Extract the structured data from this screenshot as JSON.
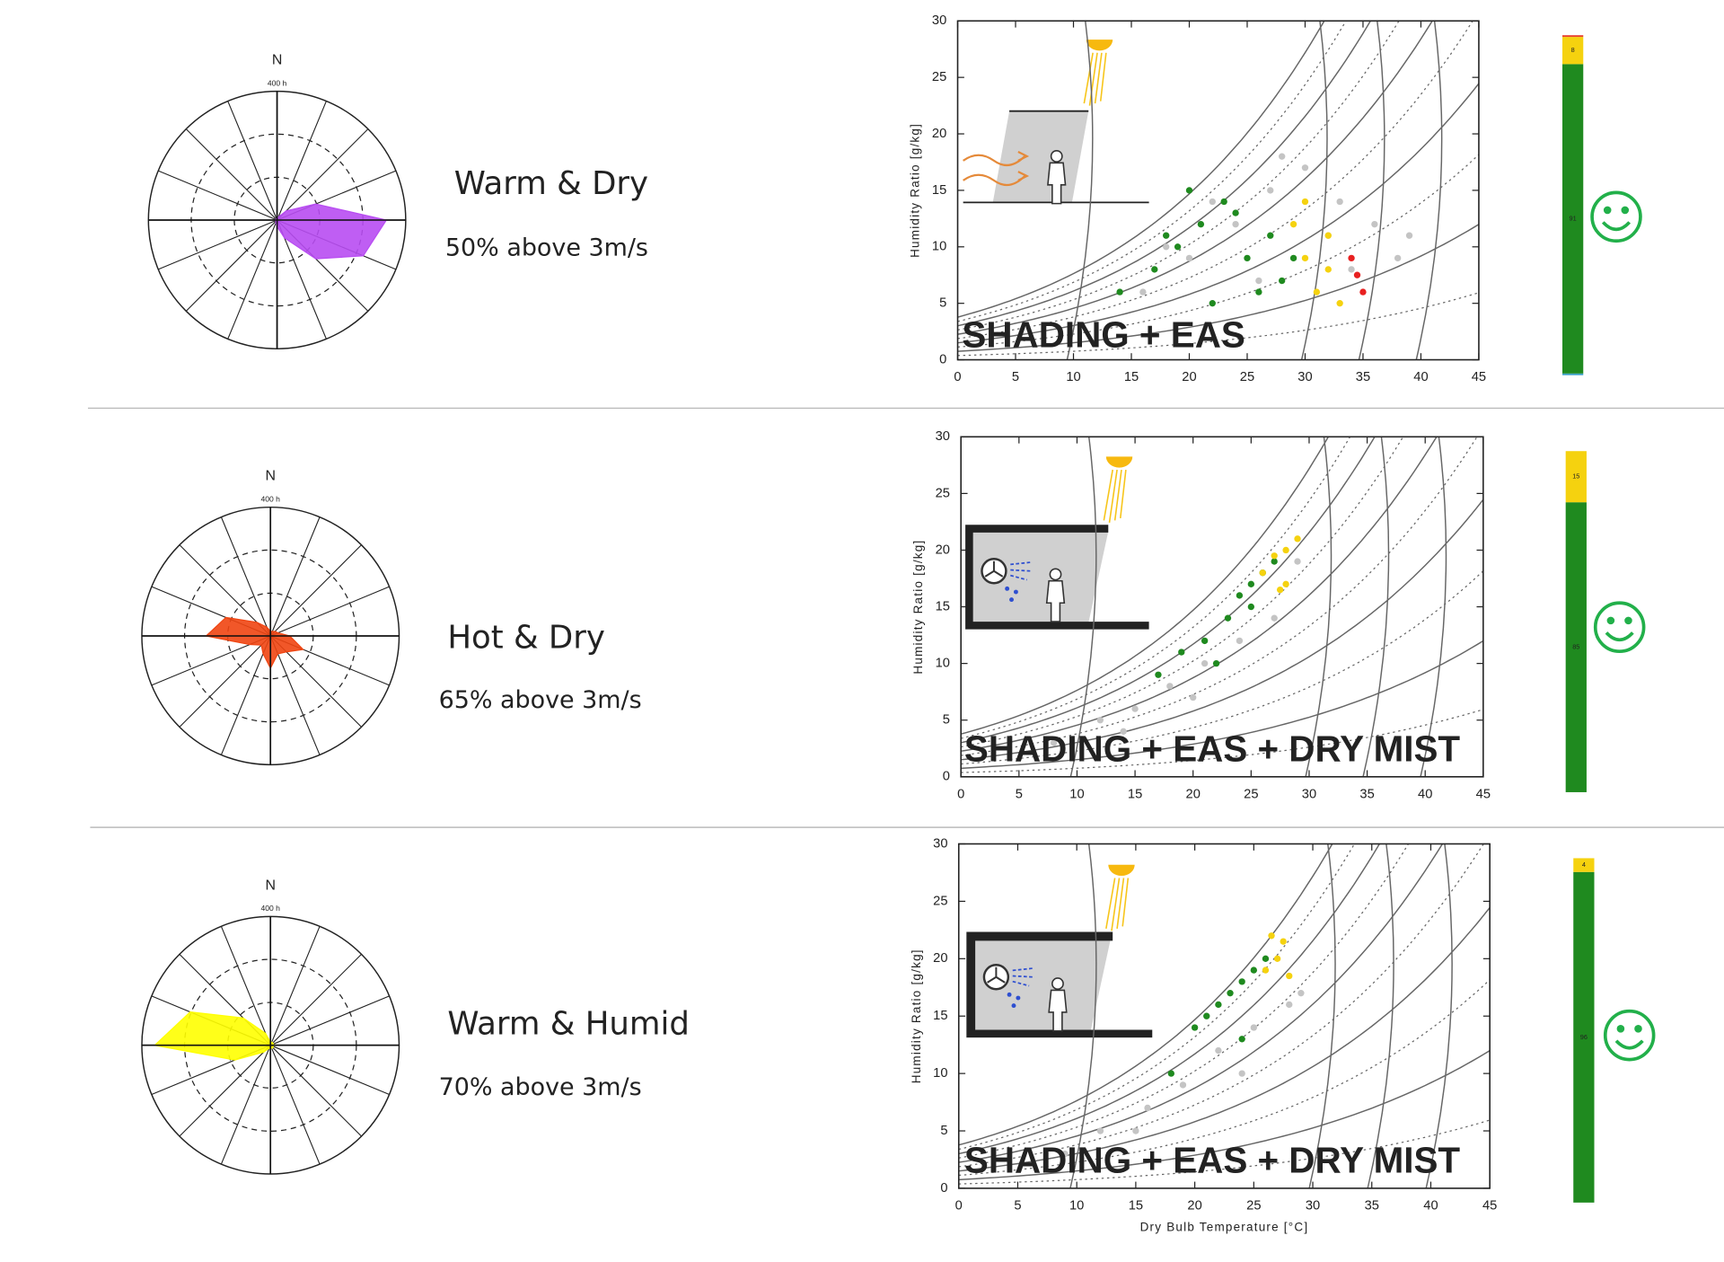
{
  "chart_data": [
    {
      "type": "windrose",
      "north_label": "N",
      "rlim": [
        0,
        400
      ],
      "rticks": [
        {
          "value": 400,
          "label": "400 h"
        }
      ],
      "rgrid": [
        133,
        267
      ],
      "color": "#b84cf2",
      "values": [
        5,
        10,
        40,
        130,
        340,
        290,
        170,
        60,
        20,
        10,
        5,
        5,
        5,
        5,
        5,
        5
      ],
      "annotations": [
        "Warm & Dry",
        "50% above 3m/s"
      ]
    },
    {
      "type": "scatter",
      "annotation": "SHADING + EAS",
      "ylabel": "Humidity Ratio  [g/kg]",
      "xlim": [
        0,
        45
      ],
      "ylim": [
        0,
        30
      ],
      "xticks": [
        0,
        5,
        10,
        15,
        20,
        25,
        30,
        35,
        40,
        45
      ],
      "yticks": [
        0,
        5,
        10,
        15,
        20,
        25,
        30
      ],
      "series": [
        {
          "color": "#c4c4c4",
          "x": [
            16,
            20,
            24,
            27,
            30,
            33,
            36,
            38,
            22,
            28,
            34,
            18,
            26,
            32,
            39
          ],
          "y": [
            6,
            9,
            12,
            15,
            17,
            14,
            12,
            9,
            14,
            18,
            8,
            10,
            7,
            11,
            11
          ]
        },
        {
          "color": "#1f8a1f",
          "x": [
            14,
            17,
            19,
            21,
            23,
            25,
            27,
            28,
            20,
            24,
            26,
            22,
            18,
            29
          ],
          "y": [
            6,
            8,
            10,
            12,
            14,
            9,
            11,
            7,
            15,
            13,
            6,
            5,
            11,
            9
          ]
        },
        {
          "color": "#f5d20f",
          "x": [
            29,
            30,
            31,
            32,
            33,
            30,
            32
          ],
          "y": [
            12,
            9,
            6,
            11,
            5,
            14,
            8
          ]
        },
        {
          "color": "#e82020",
          "x": [
            34,
            35,
            34.5
          ],
          "y": [
            9,
            6,
            7.5
          ]
        }
      ]
    },
    {
      "type": "stacked_bar",
      "ylim": [
        0,
        100
      ],
      "series": [
        {
          "color": "#3aa0c8",
          "values": [
            0.5
          ],
          "labels": false
        },
        {
          "color": "#1f8a1f",
          "values": [
            91
          ],
          "labels": true
        },
        {
          "color": "#f5d20f",
          "values": [
            8
          ],
          "labels": true
        },
        {
          "color": "#e84030",
          "values": [
            0.5
          ],
          "labels": false
        }
      ]
    },
    {
      "type": "windrose",
      "north_label": "N",
      "rlim": [
        0,
        400
      ],
      "rticks": [
        {
          "value": 400,
          "label": "400 h"
        }
      ],
      "rgrid": [
        133,
        267
      ],
      "color": "#f04512",
      "values": [
        15,
        15,
        20,
        25,
        60,
        110,
        70,
        60,
        100,
        60,
        40,
        70,
        200,
        150,
        60,
        30
      ],
      "annotations": [
        "Hot & Dry",
        "65% above 3m/s"
      ]
    },
    {
      "type": "scatter",
      "annotation": "SHADING + EAS + DRY MIST",
      "ylabel": "Humidity Ratio  [g/kg]",
      "xlim": [
        0,
        45
      ],
      "ylim": [
        0,
        30
      ],
      "xticks": [
        0,
        5,
        10,
        15,
        20,
        25,
        30,
        35,
        40,
        45
      ],
      "yticks": [
        0,
        5,
        10,
        15,
        20,
        25,
        30
      ],
      "series": [
        {
          "color": "#c4c4c4",
          "x": [
            8,
            12,
            15,
            18,
            21,
            24,
            27,
            29,
            14,
            20
          ],
          "y": [
            3,
            5,
            6,
            8,
            10,
            12,
            14,
            19,
            4,
            7
          ]
        },
        {
          "color": "#1f8a1f",
          "x": [
            17,
            19,
            21,
            23,
            24,
            25,
            26,
            27,
            22,
            25
          ],
          "y": [
            9,
            11,
            12,
            14,
            16,
            17,
            18,
            19,
            10,
            15
          ]
        },
        {
          "color": "#f5d20f",
          "x": [
            26,
            27,
            28,
            29,
            28,
            27.5
          ],
          "y": [
            18,
            19.5,
            20,
            21,
            17,
            16.5
          ]
        }
      ]
    },
    {
      "type": "stacked_bar",
      "ylim": [
        0,
        100
      ],
      "series": [
        {
          "color": "#1f8a1f",
          "values": [
            85
          ],
          "labels": true
        },
        {
          "color": "#f5d20f",
          "values": [
            15
          ],
          "labels": true
        }
      ]
    },
    {
      "type": "windrose",
      "north_label": "N",
      "rlim": [
        0,
        400
      ],
      "rticks": [
        {
          "value": 400,
          "label": "400 h"
        }
      ],
      "rgrid": [
        133,
        267
      ],
      "color": "#ffff00",
      "values": [
        10,
        10,
        10,
        10,
        10,
        10,
        10,
        10,
        10,
        10,
        30,
        120,
        360,
        270,
        120,
        40
      ],
      "annotations": [
        "Warm & Humid",
        "70% above 3m/s"
      ]
    },
    {
      "type": "scatter",
      "annotation": "SHADING + EAS + DRY MIST",
      "ylabel": "Humidity Ratio  [g/kg]",
      "xlabel": "Dry Bulb Temperature  [°C]",
      "xlim": [
        0,
        45
      ],
      "ylim": [
        0,
        30
      ],
      "xticks": [
        0,
        5,
        10,
        15,
        20,
        25,
        30,
        35,
        40,
        45
      ],
      "yticks": [
        0,
        5,
        10,
        15,
        20,
        25,
        30
      ],
      "series": [
        {
          "color": "#c4c4c4",
          "x": [
            9,
            12,
            16,
            19,
            22,
            25,
            28,
            29,
            15,
            24
          ],
          "y": [
            3,
            5,
            7,
            9,
            12,
            14,
            16,
            17,
            5,
            10
          ]
        },
        {
          "color": "#1f8a1f",
          "x": [
            18,
            20,
            22,
            23,
            24,
            25,
            26,
            21,
            24
          ],
          "y": [
            10,
            14,
            16,
            17,
            18,
            19,
            20,
            15,
            13
          ]
        },
        {
          "color": "#f5d20f",
          "x": [
            26,
            27,
            27.5,
            28,
            26.5
          ],
          "y": [
            19,
            20,
            21.5,
            18.5,
            22
          ]
        }
      ]
    },
    {
      "type": "stacked_bar",
      "ylim": [
        0,
        100
      ],
      "series": [
        {
          "color": "#1f8a1f",
          "values": [
            96
          ],
          "labels": true
        },
        {
          "color": "#f5d20f",
          "values": [
            4
          ],
          "labels": true
        }
      ]
    }
  ]
}
